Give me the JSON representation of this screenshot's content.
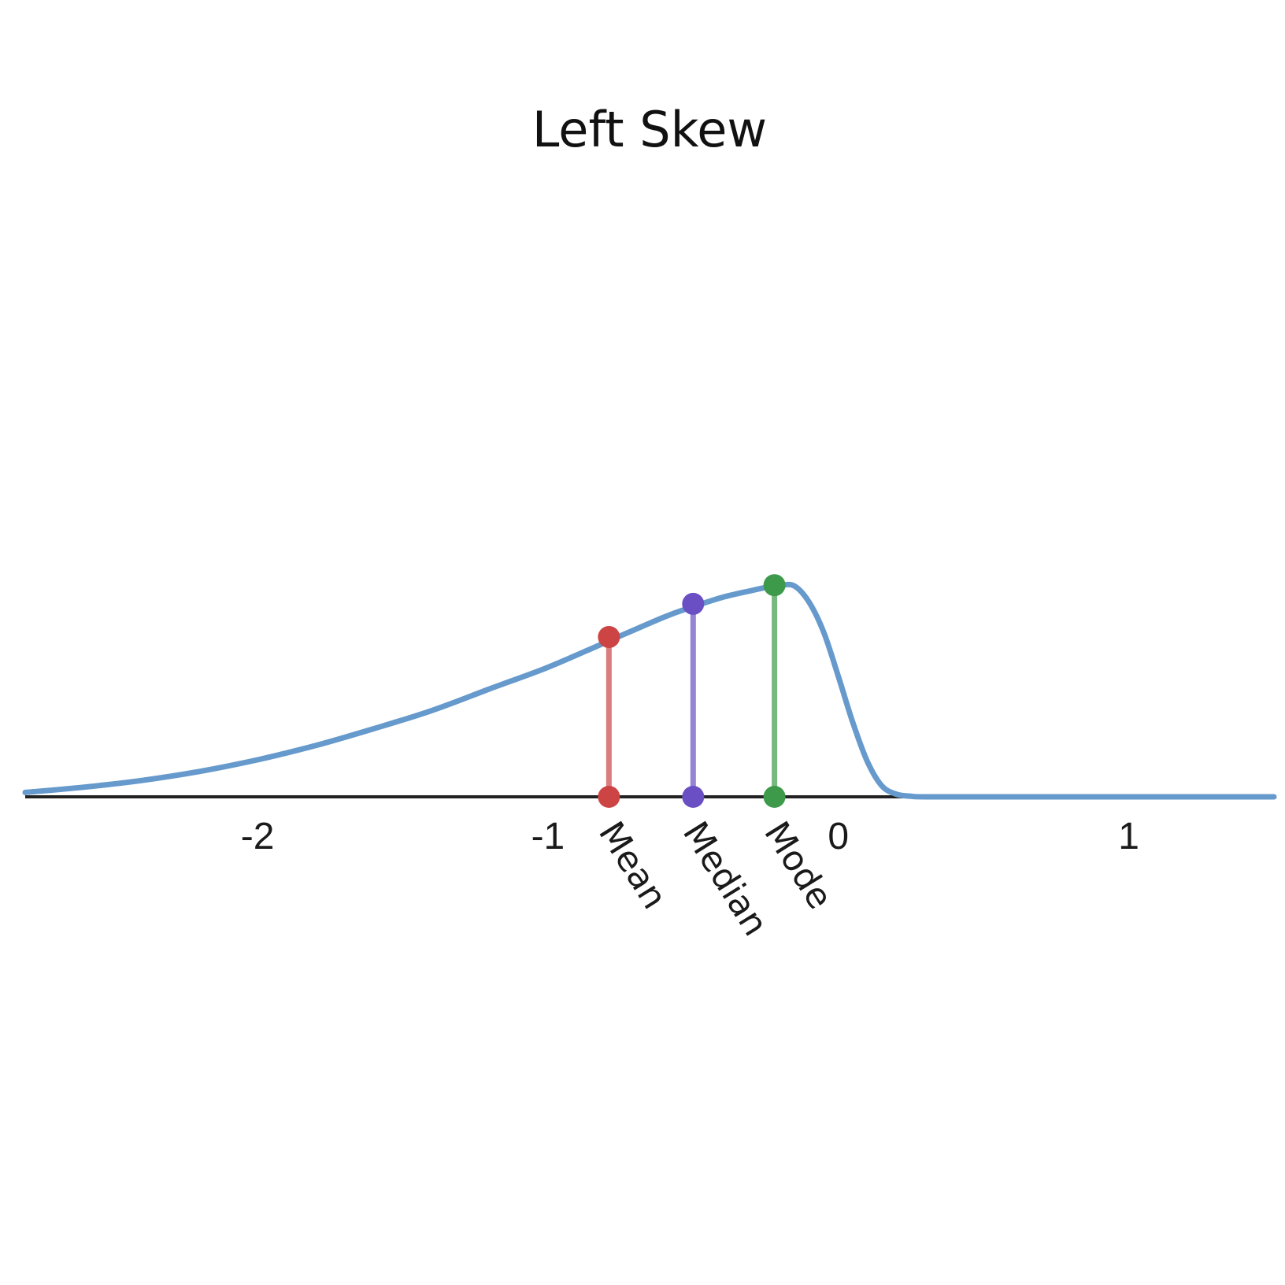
{
  "chart_data": {
    "type": "line",
    "title": "Left Skew",
    "xlabel": "",
    "ylabel": "",
    "xlim": [
      -2.8,
      1.5
    ],
    "ylim": [
      0,
      1
    ],
    "grid": false,
    "x_ticks": [
      -2,
      -1,
      0,
      1
    ],
    "x_tick_labels": [
      "-2",
      "-1",
      "0",
      "1"
    ],
    "curve_color": "#6699cc",
    "curve": {
      "x": [
        -2.8,
        -2.6,
        -2.4,
        -2.2,
        -2.0,
        -1.8,
        -1.6,
        -1.4,
        -1.2,
        -1.0,
        -0.8,
        -0.6,
        -0.5,
        -0.4,
        -0.3,
        -0.25,
        -0.2,
        -0.15,
        -0.1,
        -0.05,
        0.0,
        0.05,
        0.1,
        0.15,
        0.2,
        0.25,
        0.3,
        0.5,
        1.0,
        1.5
      ],
      "y": [
        0.017,
        0.037,
        0.063,
        0.098,
        0.143,
        0.198,
        0.263,
        0.333,
        0.417,
        0.5,
        0.597,
        0.694,
        0.734,
        0.77,
        0.796,
        0.808,
        0.817,
        0.813,
        0.75,
        0.634,
        0.465,
        0.286,
        0.136,
        0.042,
        0.01,
        0.002,
        0.0,
        0.0,
        0.0,
        0.0
      ]
    },
    "markers": [
      {
        "label": "Mean",
        "x": -0.79,
        "y": 0.617,
        "color": "#cc4444"
      },
      {
        "label": "Median",
        "x": -0.5,
        "y": 0.745,
        "color": "#6a4fc4"
      },
      {
        "label": "Mode",
        "x": -0.22,
        "y": 0.817,
        "color": "#3d9a4a"
      }
    ]
  }
}
